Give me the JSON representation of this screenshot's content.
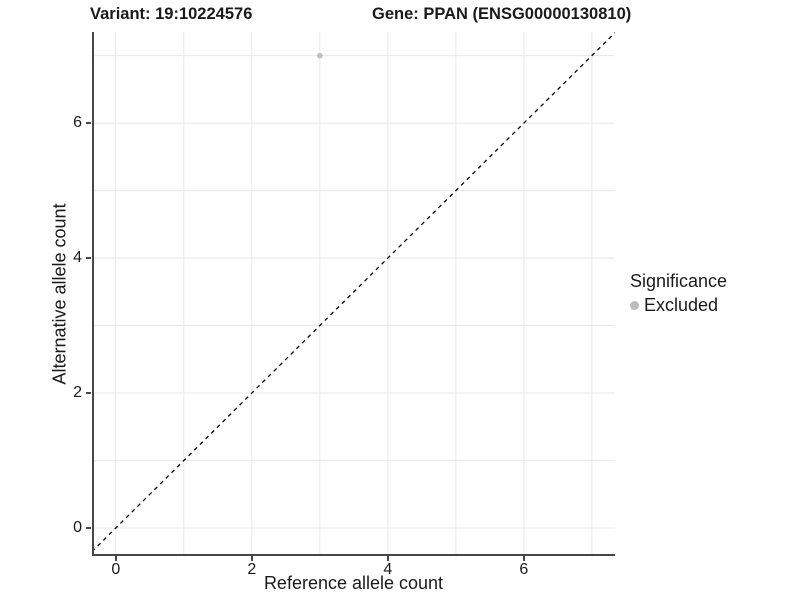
{
  "page": {
    "background": "#ffffff"
  },
  "header": {
    "title_left": "Variant: 19:10224576",
    "title_right": "Gene: PPAN (ENSG00000130810)"
  },
  "chart_data": {
    "type": "scatter",
    "title_left": "Variant: 19:10224576",
    "title_right": "Gene: PPAN (ENSG00000130810)",
    "xlabel": "Reference allele count",
    "ylabel": "Alternative allele count",
    "xlim": [
      -0.35,
      7.34
    ],
    "ylim": [
      -0.4,
      7.35
    ],
    "x_ticks": [
      0,
      2,
      4,
      6
    ],
    "y_ticks": [
      0,
      2,
      4,
      6
    ],
    "x_gridlines": [
      0,
      1,
      2,
      3,
      4,
      5,
      6,
      7
    ],
    "y_gridlines": [
      0,
      1,
      2,
      3,
      4,
      5,
      6,
      7
    ],
    "grid_on": true,
    "grid_color": "#e8e8e8",
    "axis_color": "#474747",
    "tick_label_color": "#1a1a1a",
    "series": [
      {
        "name": "Excluded",
        "color": "#bebebe",
        "points": [
          {
            "x": 3,
            "y": 7
          }
        ]
      }
    ],
    "reference_line": {
      "slope": 1,
      "intercept": 0,
      "style": "dashed",
      "color": "#000000"
    },
    "legend": {
      "title": "Significance",
      "position": "right",
      "items": [
        {
          "label": "Excluded",
          "color": "#bebebe"
        }
      ]
    }
  }
}
